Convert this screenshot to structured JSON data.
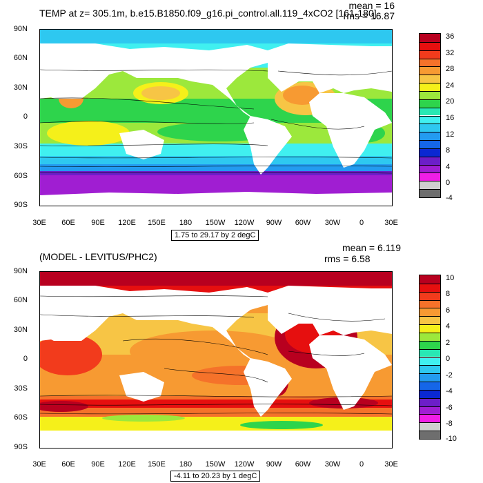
{
  "panel1": {
    "title": "TEMP at z= 305.1m, b.e15.B1850.f09_g16.pi_control.all.119_4xCO2 [161-180]",
    "mean": "mean = 16",
    "rms": "rms = 16.87",
    "info": "1.75 to 29.17 by 2 degC",
    "lat_labels": [
      "90N",
      "60N",
      "30N",
      "0",
      "30S",
      "60S",
      "90S"
    ],
    "lon_labels": [
      "30E",
      "60E",
      "90E",
      "120E",
      "150E",
      "180",
      "150W",
      "120W",
      "90W",
      "60W",
      "30W",
      "0",
      "30E"
    ],
    "colorbar": {
      "labels": [
        "36",
        "32",
        "28",
        "24",
        "20",
        "16",
        "12",
        "8",
        "4",
        "0",
        "-4"
      ],
      "colors": [
        "#b8001f",
        "#e60f0f",
        "#f23b1c",
        "#f5722a",
        "#f79a32",
        "#f7c545",
        "#f5f01a",
        "#9ce83c",
        "#2ed44c",
        "#28e8b4",
        "#40f0f0",
        "#2ec8f0",
        "#239bf0",
        "#1566e8",
        "#0a28d2",
        "#6c1ec8",
        "#a01ed2",
        "#f01ee6",
        "#cfcfcf",
        "#6e6e6e"
      ]
    }
  },
  "panel2": {
    "title": "(MODEL - LEVITUS/PHC2)",
    "mean": "mean = 6.119",
    "rms": "rms = 6.58",
    "info": "-4.11 to 20.23 by 1 degC",
    "lat_labels": [
      "90N",
      "60N",
      "30N",
      "0",
      "30S",
      "60S",
      "90S"
    ],
    "lon_labels": [
      "30E",
      "60E",
      "90E",
      "120E",
      "150E",
      "180",
      "150W",
      "120W",
      "90W",
      "60W",
      "30W",
      "0",
      "30E"
    ],
    "colorbar": {
      "labels": [
        "10",
        "8",
        "6",
        "4",
        "2",
        "0",
        "-2",
        "-4",
        "-6",
        "-8",
        "-10"
      ],
      "colors": [
        "#b8001f",
        "#e60f0f",
        "#f23b1c",
        "#f5722a",
        "#f79a32",
        "#f7c545",
        "#f5f01a",
        "#9ce83c",
        "#2ed44c",
        "#28e8b4",
        "#40f0f0",
        "#2ec8f0",
        "#239bf0",
        "#1566e8",
        "#0a28d2",
        "#6c1ec8",
        "#a01ed2",
        "#f01ee6",
        "#cfcfcf",
        "#6e6e6e"
      ]
    }
  }
}
